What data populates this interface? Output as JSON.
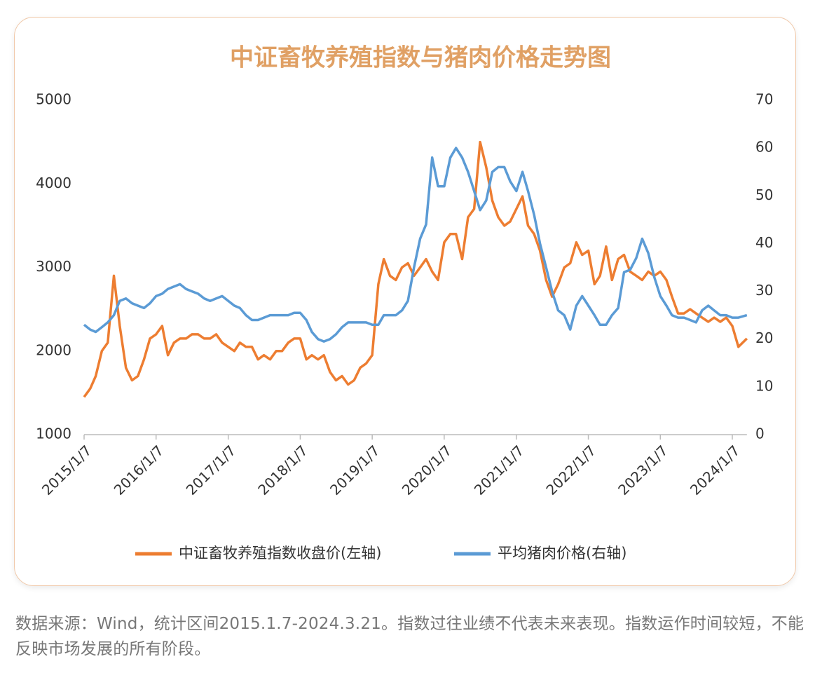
{
  "chart_data": {
    "type": "line",
    "title": "中证畜牧养殖指数与猪肉价格走势图",
    "x": [
      "2015/1/7",
      "2015/2/7",
      "2015/3/7",
      "2015/4/7",
      "2015/5/7",
      "2015/6/7",
      "2015/7/7",
      "2015/8/7",
      "2015/9/7",
      "2015/10/7",
      "2015/11/7",
      "2015/12/7",
      "2016/1/7",
      "2016/2/7",
      "2016/3/7",
      "2016/4/7",
      "2016/5/7",
      "2016/6/7",
      "2016/7/7",
      "2016/8/7",
      "2016/9/7",
      "2016/10/7",
      "2016/11/7",
      "2016/12/7",
      "2017/1/7",
      "2017/2/7",
      "2017/3/7",
      "2017/4/7",
      "2017/5/7",
      "2017/6/7",
      "2017/7/7",
      "2017/8/7",
      "2017/9/7",
      "2017/10/7",
      "2017/11/7",
      "2017/12/7",
      "2018/1/7",
      "2018/2/7",
      "2018/3/7",
      "2018/4/7",
      "2018/5/7",
      "2018/6/7",
      "2018/7/7",
      "2018/8/7",
      "2018/9/7",
      "2018/10/7",
      "2018/11/7",
      "2018/12/7",
      "2019/1/7",
      "2019/2/7",
      "2019/3/7",
      "2019/4/7",
      "2019/5/7",
      "2019/6/7",
      "2019/7/7",
      "2019/8/7",
      "2019/9/7",
      "2019/10/7",
      "2019/11/7",
      "2019/12/7",
      "2020/1/7",
      "2020/2/7",
      "2020/3/7",
      "2020/4/7",
      "2020/5/7",
      "2020/6/7",
      "2020/7/7",
      "2020/8/7",
      "2020/9/7",
      "2020/10/7",
      "2020/11/7",
      "2020/12/7",
      "2021/1/7",
      "2021/2/7",
      "2021/3/7",
      "2021/4/7",
      "2021/5/7",
      "2021/6/7",
      "2021/7/7",
      "2021/8/7",
      "2021/9/7",
      "2021/10/7",
      "2021/11/7",
      "2021/12/7",
      "2022/1/7",
      "2022/2/7",
      "2022/3/7",
      "2022/4/7",
      "2022/5/7",
      "2022/6/7",
      "2022/7/7",
      "2022/8/7",
      "2022/9/7",
      "2022/10/7",
      "2022/11/7",
      "2022/12/7",
      "2023/1/7",
      "2023/2/7",
      "2023/3/7",
      "2023/4/7",
      "2023/5/7",
      "2023/6/7",
      "2023/7/7",
      "2023/8/7",
      "2023/9/7",
      "2023/10/7",
      "2023/11/7",
      "2023/12/7",
      "2024/1/7",
      "2024/2/7",
      "2024/3/21"
    ],
    "series": [
      {
        "name": "中证畜牧养殖指数收盘价(左轴)",
        "color": "#ed7d31",
        "axis": "y",
        "values": [
          1450,
          1550,
          1700,
          2000,
          2100,
          2900,
          2300,
          1800,
          1650,
          1700,
          1900,
          2150,
          2200,
          2300,
          1950,
          2100,
          2150,
          2150,
          2200,
          2200,
          2150,
          2150,
          2200,
          2100,
          2050,
          2000,
          2100,
          2050,
          2050,
          1900,
          1950,
          1900,
          2000,
          2000,
          2100,
          2150,
          2150,
          1900,
          1950,
          1900,
          1950,
          1750,
          1650,
          1700,
          1600,
          1650,
          1800,
          1850,
          1950,
          2800,
          3100,
          2900,
          2850,
          3000,
          3050,
          2900,
          3000,
          3100,
          2950,
          2850,
          3300,
          3400,
          3400,
          3100,
          3600,
          3700,
          4500,
          4200,
          3800,
          3600,
          3500,
          3550,
          3700,
          3850,
          3500,
          3400,
          3200,
          2850,
          2650,
          2800,
          3000,
          3050,
          3300,
          3150,
          3200,
          2800,
          2900,
          3250,
          2850,
          3100,
          3150,
          2950,
          2900,
          2850,
          2950,
          2900,
          2950,
          2850,
          2650,
          2450,
          2450,
          2500,
          2450,
          2400,
          2350,
          2400,
          2350,
          2400,
          2300,
          2050,
          2150
        ]
      },
      {
        "name": "平均猪肉价格(右轴)",
        "color": "#5b9bd5",
        "axis": "y2",
        "values": [
          23,
          22,
          21.5,
          22.5,
          23.5,
          25,
          28,
          28.5,
          27.5,
          27,
          26.5,
          27.5,
          29,
          29.5,
          30.5,
          31,
          31.5,
          30.5,
          30,
          29.5,
          28.5,
          28,
          28.5,
          29,
          28,
          27,
          26.5,
          25,
          24,
          24,
          24.5,
          25,
          25,
          25,
          25,
          25.5,
          25.5,
          24,
          21.5,
          20,
          19.5,
          20,
          21,
          22.5,
          23.5,
          23.5,
          23.5,
          23.5,
          23,
          23,
          25,
          25,
          25,
          26,
          28,
          35,
          41,
          44,
          58,
          52,
          52,
          58,
          60,
          58,
          55,
          51,
          47,
          49,
          55,
          56,
          56,
          53,
          51,
          55,
          51,
          46,
          40,
          35,
          30,
          26,
          25,
          22,
          27,
          29,
          27,
          25,
          23,
          23,
          25,
          26.5,
          34,
          34.5,
          37,
          41,
          38,
          33,
          29,
          27,
          25,
          24.5,
          24.5,
          24,
          23.5,
          26,
          27,
          26,
          25,
          25,
          24.5,
          24.5,
          25
        ]
      }
    ],
    "xlim": [
      "2015/1/7",
      "2024/3/21"
    ],
    "xticks": [
      "2015/1/7",
      "2016/1/7",
      "2017/1/7",
      "2018/1/7",
      "2019/1/7",
      "2020/1/7",
      "2021/1/7",
      "2022/1/7",
      "2023/1/7",
      "2024/1/7"
    ],
    "ylim": [
      1000,
      5000
    ],
    "yticks": [
      1000,
      2000,
      3000,
      4000,
      5000
    ],
    "y2lim": [
      0,
      70
    ],
    "y2ticks": [
      0,
      10,
      20,
      30,
      40,
      50,
      60,
      70
    ]
  },
  "footnote": "数据来源：Wind，统计区间2015.1.7-2024.3.21。指数过往业绩不代表未来表现。指数运作时间较短，不能反映市场发展的所有阶段。"
}
